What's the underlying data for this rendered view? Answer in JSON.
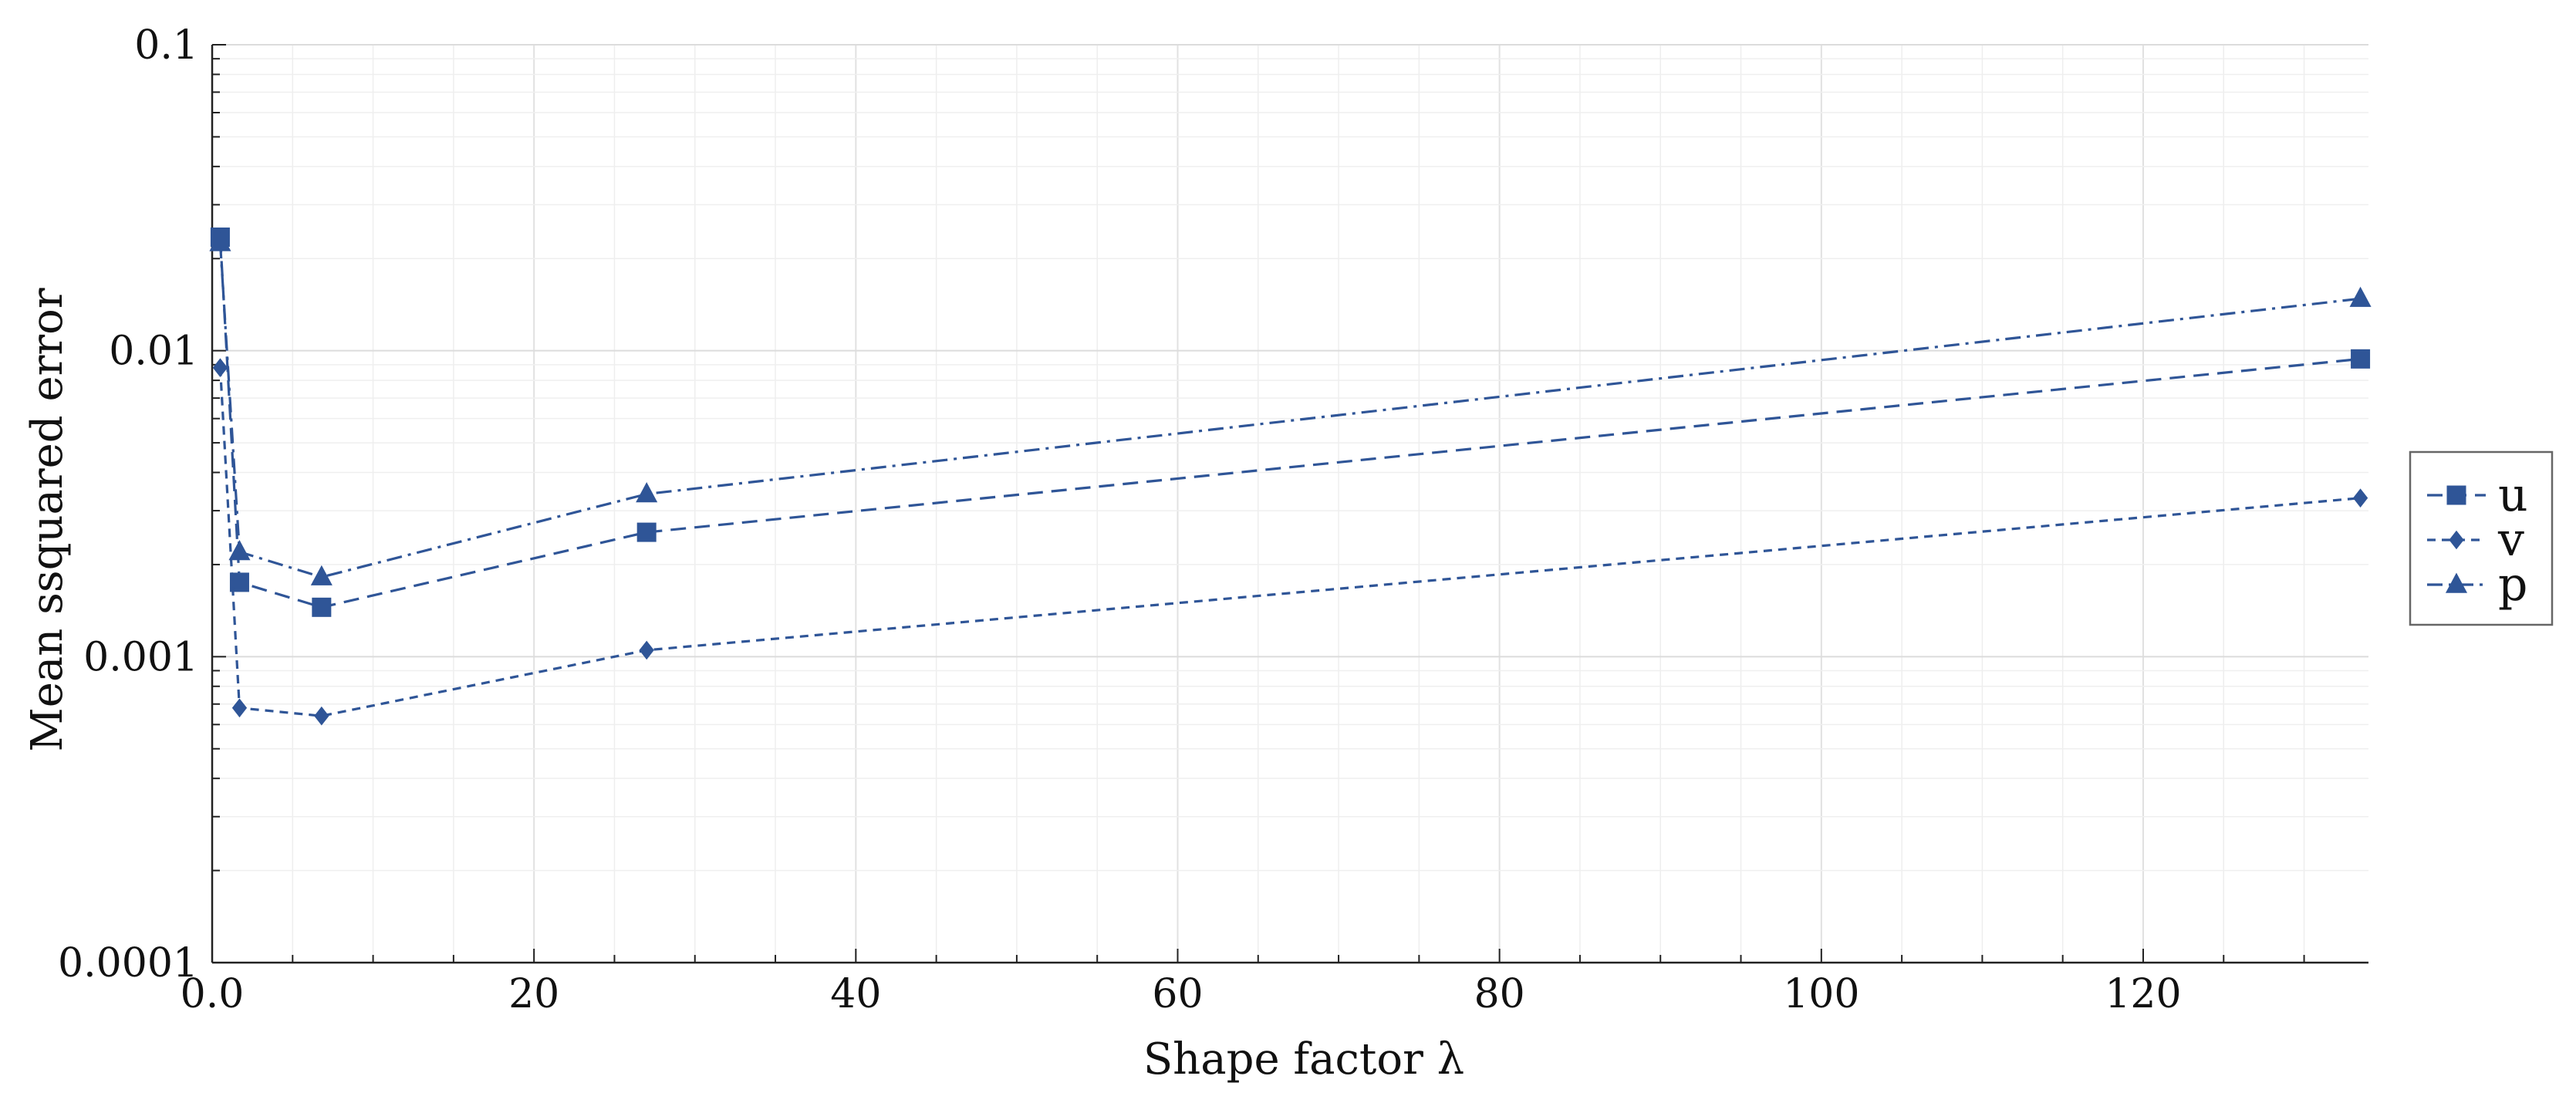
{
  "chart_data": {
    "type": "line",
    "title": "",
    "xlabel": "Shape factor λ",
    "ylabel": "Mean ssquared error",
    "xlim": [
      0,
      134
    ],
    "ylim": [
      0.0001,
      0.1
    ],
    "yscale": "log",
    "x_ticks": [
      0,
      20,
      40,
      60,
      80,
      100,
      120
    ],
    "x_tick_labels": [
      "0.0",
      "20",
      "40",
      "60",
      "80",
      "100",
      "120"
    ],
    "y_ticks": [
      0.0001,
      0.001,
      0.01,
      0.1
    ],
    "y_tick_labels": [
      "0.0001",
      "0.001",
      "0.01",
      "0.1"
    ],
    "grid": true,
    "legend_position": "right",
    "line_color": "#2f5597",
    "series": [
      {
        "name": "u",
        "marker": "square",
        "dash": "long-dash",
        "x": [
          0.5,
          1.7,
          6.8,
          27,
          133.5
        ],
        "y": [
          0.0235,
          0.00175,
          0.00145,
          0.00255,
          0.0094
        ]
      },
      {
        "name": "v",
        "marker": "diamond",
        "dash": "short-dash",
        "x": [
          0.5,
          1.7,
          6.8,
          27,
          133.5
        ],
        "y": [
          0.0088,
          0.00068,
          0.00064,
          0.00105,
          0.0033
        ]
      },
      {
        "name": "p",
        "marker": "triangle",
        "dash": "dash-dot",
        "x": [
          0.5,
          1.7,
          6.8,
          27,
          133.5
        ],
        "y": [
          0.0225,
          0.0022,
          0.00182,
          0.0034,
          0.0148
        ]
      }
    ]
  }
}
